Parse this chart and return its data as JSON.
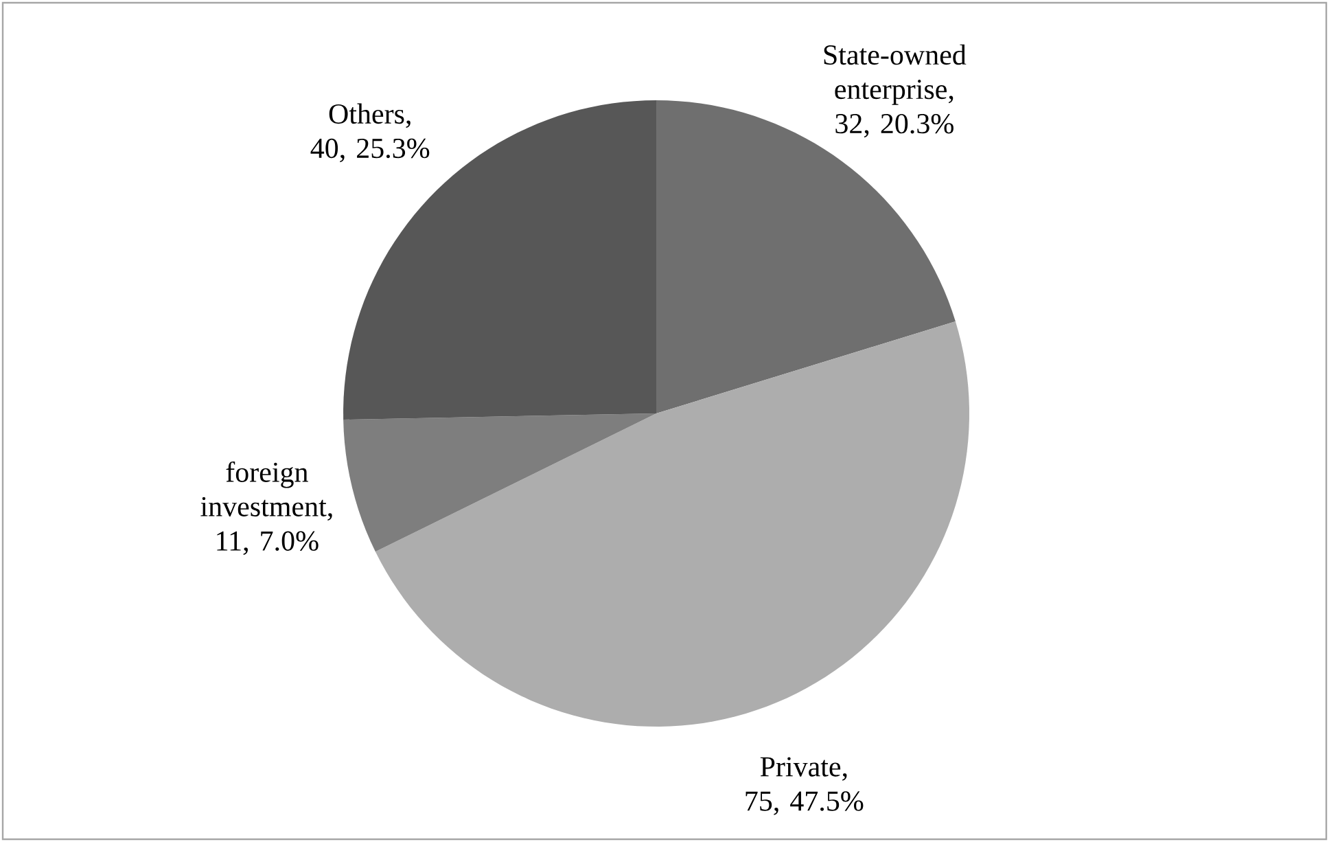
{
  "chart_data": {
    "type": "pie",
    "categories": [
      "State-owned enterprise",
      "Private",
      "foreign investment",
      "Others"
    ],
    "values": [
      32,
      75,
      11,
      40
    ],
    "value_labels": [
      ", 32, 20.3%",
      ", 75, 47.5%",
      ", 11, 7.0%",
      ", 40, 25.3%"
    ],
    "colors": [
      "#6f6f6f",
      "#adadad",
      "#7e7e7e",
      "#575757"
    ]
  }
}
